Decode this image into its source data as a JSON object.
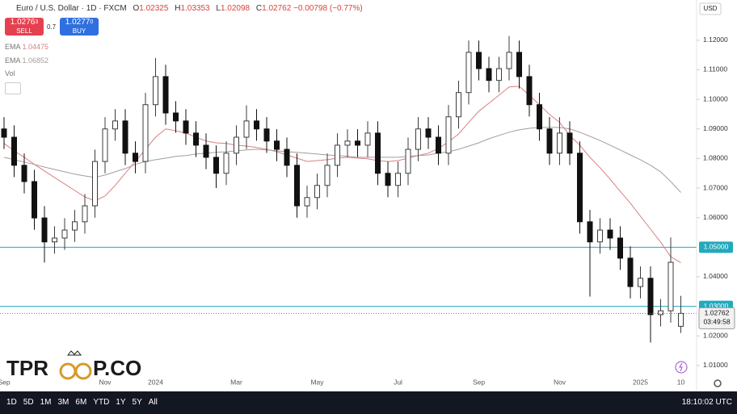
{
  "header": {
    "symbol": "Euro / U.S. Dollar · 1D · FXCM",
    "o": "O",
    "h": "H",
    "l": "L",
    "c": "C",
    "change": "−0.00798 (−0.77%)",
    "currency": "USD"
  },
  "trade": {
    "sell_price": "1.0276",
    "sell_pip": "3",
    "sell": "SELL",
    "spread": "0.7",
    "buy_price": "1.0277",
    "buy_pip": "0",
    "buy": "BUY"
  },
  "indicators": {
    "vol": "Vol"
  },
  "chart_data": {
    "type": "candlestick",
    "categories": [
      "Sep",
      null,
      null,
      null,
      null,
      null,
      null,
      null,
      null,
      null,
      "Nov",
      null,
      null,
      null,
      null,
      "2024",
      null,
      null,
      null,
      null,
      null,
      null,
      null,
      "Mar",
      null,
      null,
      null,
      null,
      null,
      null,
      null,
      "May",
      null,
      null,
      null,
      null,
      null,
      null,
      null,
      "Jul",
      null,
      null,
      null,
      null,
      null,
      null,
      null,
      "Sep",
      null,
      null,
      null,
      null,
      null,
      null,
      null,
      "Nov",
      null,
      null,
      null,
      null,
      null,
      null,
      null,
      "2025",
      null,
      null,
      null,
      "10"
    ],
    "candles": {
      "open": [
        1.09,
        1.0872,
        1.0777,
        1.0722,
        1.0599,
        1.0518,
        1.0531,
        1.0558,
        1.0586,
        1.064,
        1.079,
        1.09,
        1.0927,
        1.0818,
        1.079,
        1.0982,
        1.1077,
        1.0954,
        1.0927,
        1.0886,
        1.0845,
        1.0804,
        1.075,
        1.0818,
        1.0872,
        1.0927,
        1.09,
        1.0859,
        1.0831,
        1.0777,
        1.064,
        1.0668,
        1.0709,
        1.0777,
        1.0845,
        1.0859,
        1.0845,
        1.0886,
        1.075,
        1.0709,
        1.075,
        1.0831,
        1.09,
        1.0872,
        1.0818,
        1.0941,
        1.1023,
        1.1159,
        1.1104,
        1.1064,
        1.1104,
        1.1159,
        1.1077,
        1.0982,
        1.09,
        1.0818,
        1.0886,
        1.0818,
        1.0586,
        1.0518,
        1.0558,
        1.0531,
        1.0463,
        1.0367,
        1.0395,
        1.0272,
        1.0285,
        1.02325
      ],
      "high": [
        1.094,
        1.0912,
        1.0817,
        1.0762,
        1.0639,
        1.0571,
        1.0598,
        1.0626,
        1.068,
        1.083,
        1.094,
        1.0967,
        1.0967,
        1.0858,
        1.1022,
        1.114,
        1.1117,
        1.0994,
        1.0967,
        1.0926,
        1.0885,
        1.0844,
        1.0858,
        1.0912,
        1.098,
        1.0967,
        1.094,
        1.0899,
        1.0871,
        1.0817,
        1.0708,
        1.0749,
        1.0817,
        1.0885,
        1.0899,
        1.0899,
        1.0926,
        1.0926,
        1.079,
        1.079,
        1.0871,
        1.094,
        1.094,
        1.0912,
        1.0981,
        1.1063,
        1.1199,
        1.1199,
        1.1144,
        1.1144,
        1.1214,
        1.1199,
        1.1117,
        1.1022,
        1.094,
        1.094,
        1.0926,
        1.0858,
        1.0626,
        1.0598,
        1.0598,
        1.0571,
        1.0503,
        1.0435,
        1.0435,
        1.0325,
        1.0533,
        1.03353
      ],
      "low": [
        1.0832,
        1.0737,
        1.0682,
        1.0559,
        1.0448,
        1.0478,
        1.0491,
        1.0518,
        1.0546,
        1.06,
        1.075,
        1.086,
        1.0778,
        1.075,
        1.075,
        1.0942,
        1.0914,
        1.0887,
        1.0846,
        1.0805,
        1.0764,
        1.07,
        1.071,
        1.0778,
        1.0832,
        1.086,
        1.0819,
        1.0791,
        1.0737,
        1.06,
        1.06,
        1.0628,
        1.0669,
        1.0737,
        1.0805,
        1.0805,
        1.0805,
        1.071,
        1.0669,
        1.0669,
        1.071,
        1.0791,
        1.0832,
        1.0778,
        1.0778,
        1.0901,
        1.0983,
        1.1064,
        1.1024,
        1.1024,
        1.1064,
        1.1037,
        1.0942,
        1.086,
        1.0778,
        1.0778,
        1.0778,
        1.0546,
        1.0333,
        1.0478,
        1.0491,
        1.0423,
        1.0327,
        1.0327,
        1.0178,
        1.0232,
        1.0245,
        1.02098
      ],
      "close": [
        1.0872,
        1.0777,
        1.0722,
        1.0599,
        1.0518,
        1.0531,
        1.0558,
        1.0586,
        1.064,
        1.079,
        1.09,
        1.0927,
        1.0818,
        1.079,
        1.0982,
        1.1077,
        1.0954,
        1.0927,
        1.0886,
        1.0845,
        1.0804,
        1.075,
        1.0818,
        1.0872,
        1.0927,
        1.09,
        1.0859,
        1.0831,
        1.0777,
        1.064,
        1.0668,
        1.0709,
        1.0777,
        1.0845,
        1.0859,
        1.0845,
        1.0886,
        1.075,
        1.0709,
        1.075,
        1.0831,
        1.09,
        1.0872,
        1.0818,
        1.0941,
        1.1023,
        1.1159,
        1.1104,
        1.1064,
        1.1104,
        1.1159,
        1.1077,
        1.0982,
        1.09,
        1.0818,
        1.0886,
        1.0818,
        1.0586,
        1.0518,
        1.0558,
        1.0531,
        1.0463,
        1.0367,
        1.0395,
        1.0272,
        1.0285,
        1.0449,
        1.02762
      ]
    },
    "up_color": "#3c3c3c",
    "down_color": "#111111",
    "series": [
      {
        "name": "EMA",
        "color": "#d98080",
        "values": [
          1.0851,
          1.0826,
          1.0804,
          1.078,
          1.0758,
          1.0736,
          1.0714,
          1.0692,
          1.067,
          1.0657,
          1.0673,
          1.0709,
          1.075,
          1.079,
          1.0831,
          1.0872,
          1.09,
          1.0894,
          1.0886,
          1.0872,
          1.0859,
          1.0853,
          1.0851,
          1.0845,
          1.0842,
          1.0837,
          1.0831,
          1.0823,
          1.0812,
          1.0801,
          1.079,
          1.0793,
          1.0796,
          1.0801,
          1.0804,
          1.0801,
          1.0799,
          1.0793,
          1.079,
          1.0793,
          1.0801,
          1.081,
          1.0818,
          1.0834,
          1.0856,
          1.0883,
          1.0922,
          1.096,
          1.0987,
          1.1014,
          1.1042,
          1.1044,
          1.1014,
          1.0982,
          1.0949,
          1.0922,
          1.0878,
          1.0845,
          1.0804,
          1.0769,
          1.073,
          1.0689,
          1.0649,
          1.0605,
          1.0561,
          1.0517,
          1.0468,
          1.04475
        ]
      },
      {
        "name": "EMA",
        "color": "#a89c9c",
        "values": [
          1.0804,
          1.0796,
          1.0788,
          1.078,
          1.0771,
          1.0763,
          1.0755,
          1.0747,
          1.0741,
          1.0736,
          1.0744,
          1.0755,
          1.0766,
          1.078,
          1.079,
          1.0796,
          1.0801,
          1.0807,
          1.081,
          1.0815,
          1.0818,
          1.0821,
          1.0823,
          1.0826,
          1.0829,
          1.0831,
          1.0829,
          1.0826,
          1.0823,
          1.0821,
          1.0818,
          1.0815,
          1.0812,
          1.081,
          1.0807,
          1.0804,
          1.0804,
          1.0804,
          1.0804,
          1.0804,
          1.0807,
          1.081,
          1.0812,
          1.0818,
          1.0823,
          1.0831,
          1.0842,
          1.0853,
          1.0867,
          1.0878,
          1.0889,
          1.0897,
          1.0902,
          1.0905,
          1.0905,
          1.0905,
          1.09,
          1.0889,
          1.0875,
          1.0861,
          1.0845,
          1.0829,
          1.0812,
          1.0796,
          1.0777,
          1.0755,
          1.0722,
          1.06852
        ]
      }
    ],
    "ylim": [
      1.0067,
      1.1336
    ],
    "yticks": [
      {
        "value": 1.12,
        "label": "1.12000"
      },
      {
        "value": 1.11,
        "label": "1.11000"
      },
      {
        "value": 1.1,
        "label": "1.10000"
      },
      {
        "value": 1.09,
        "label": "1.09000"
      },
      {
        "value": 1.08,
        "label": "1.08000"
      },
      {
        "value": 1.07,
        "label": "1.07000"
      },
      {
        "value": 1.06,
        "label": "1.06000"
      },
      {
        "value": 1.04,
        "label": "1.04000"
      },
      {
        "value": 1.02,
        "label": "1.02000"
      },
      {
        "value": 1.01,
        "label": "1.01000"
      }
    ],
    "levels": [
      {
        "value": 1.05,
        "label": "1.05000"
      },
      {
        "value": 1.03,
        "label": "1.03000"
      }
    ],
    "level_color": "#22a9bd",
    "countdown": "03:49:58"
  },
  "toolbar": {
    "ranges": [
      "1D",
      "5D",
      "1M",
      "3M",
      "6M",
      "YTD",
      "1Y",
      "5Y",
      "All"
    ],
    "clock": "18:10:02 UTC"
  },
  "watermark": {
    "left": "TPR",
    "right": "P.CO"
  }
}
